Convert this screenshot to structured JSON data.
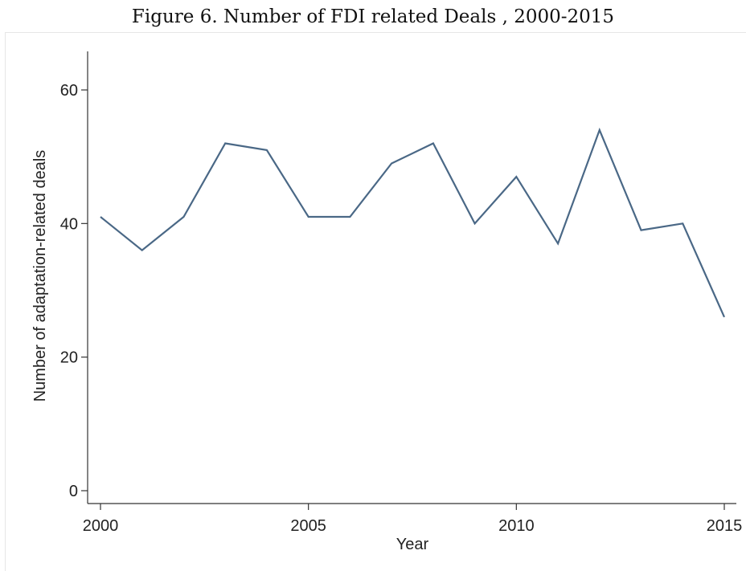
{
  "figure_title": "Figure 6. Number of FDI related Deals , 2000-2015",
  "colors": {
    "line": "#4a6886",
    "axis": "#333333",
    "text": "#222222"
  },
  "chart_data": {
    "type": "line",
    "title": "Figure 6. Number of FDI related Deals , 2000-2015",
    "xlabel": "Year",
    "ylabel": "Number of adaptation-related deals",
    "x": [
      2000,
      2001,
      2002,
      2003,
      2004,
      2005,
      2006,
      2007,
      2008,
      2009,
      2010,
      2011,
      2012,
      2013,
      2014,
      2015
    ],
    "series": [
      {
        "values": [
          41,
          36,
          41,
          52,
          51,
          41,
          41,
          49,
          52,
          40,
          47,
          37,
          54,
          39,
          40,
          26
        ]
      }
    ],
    "xticks": [
      "2000",
      "2005",
      "2010",
      "2015"
    ],
    "yticks": [
      "0",
      "20",
      "40",
      "60"
    ],
    "xlim": [
      2000,
      2015
    ],
    "ylim": [
      0,
      60
    ],
    "grid": false,
    "legend": "none"
  }
}
